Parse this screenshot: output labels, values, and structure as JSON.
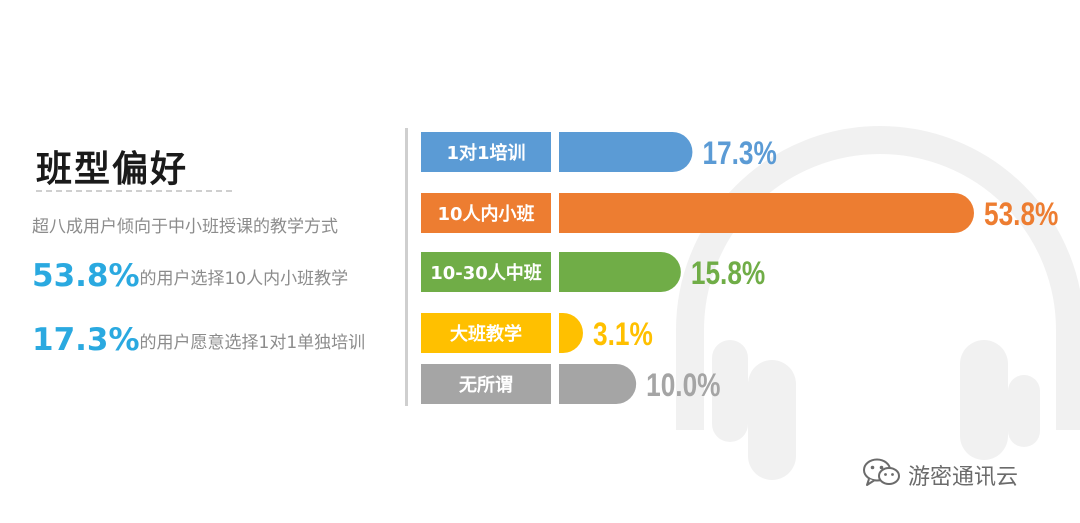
{
  "page": {
    "title": "班型偏好",
    "subtitle": "超八成用户倾向于中小班授课的教学方式",
    "stats": [
      {
        "pct": "53.8%",
        "text": "的用户选择10人内小班教学"
      },
      {
        "pct": "17.3%",
        "text": "的用户愿意选择1对1单独培训"
      }
    ],
    "watermark": "游密通讯云",
    "icons": {
      "background": "headphones-icon",
      "watermark": "wechat-icon"
    },
    "colors": {
      "accent": "#2aa9e0",
      "muted_text": "#8c8c8c",
      "label_box": "#5b9bd5"
    }
  },
  "chart_data": {
    "type": "bar",
    "orientation": "horizontal",
    "title": "",
    "categories": [
      "1对1培训",
      "10人内小班",
      "10-30人中班",
      "大班教学",
      "无所谓"
    ],
    "values": [
      17.3,
      53.8,
      15.8,
      3.1,
      10.0
    ],
    "value_labels": [
      "17.3%",
      "53.8%",
      "15.8%",
      "3.1%",
      "10.0%"
    ],
    "colors": [
      "#5b9bd5",
      "#ed7d31",
      "#70ad47",
      "#ffc000",
      "#a5a5a5"
    ],
    "unit": "%",
    "xlim": [
      0,
      53.8
    ],
    "grid": false,
    "legend": "none"
  }
}
